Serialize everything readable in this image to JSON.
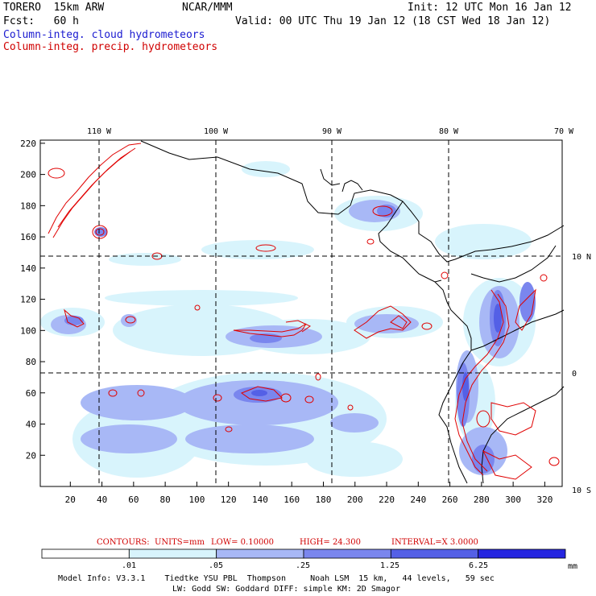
{
  "header": {
    "model": "TORERO  15km ARW",
    "org": "NCAR/MMM",
    "init": "Init: 12 UTC Mon 16 Jan 12",
    "fcst": "Fcst:   60 h",
    "valid": "Valid: 00 UTC Thu 19 Jan 12 (18 CST Wed 18 Jan 12)",
    "field1": "Column-integ. cloud hydrometeors",
    "field2": "Column-integ. precip. hydrometeors"
  },
  "map": {
    "lon_labels": [
      "110 W",
      "100 W",
      "90 W",
      "80 W",
      "70 W"
    ],
    "lat_labels": [
      "10 N",
      "0",
      "10 S"
    ],
    "x_ticks": [
      "20",
      "40",
      "60",
      "80",
      "100",
      "120",
      "140",
      "160",
      "180",
      "200",
      "220",
      "240",
      "260",
      "280",
      "300",
      "320"
    ],
    "y_ticks": [
      "20",
      "40",
      "60",
      "80",
      "100",
      "120",
      "140",
      "160",
      "180",
      "200",
      "220"
    ]
  },
  "contour_info": {
    "label": "CONTOURS:",
    "units": "UNITS=mm",
    "low": "LOW= 0.10000",
    "high": "HIGH=  24.300",
    "interval": "INTERVAL=X  3.0000"
  },
  "colorbar": {
    "labels": [
      ".01",
      ".05",
      ".25",
      "1.25",
      "6.25"
    ],
    "unit": "mm",
    "colors": [
      "#ffffff",
      "#d8f4fc",
      "#a8b8f6",
      "#7a86ee",
      "#5460e6",
      "#2626e0"
    ]
  },
  "footer": {
    "line1": "Model Info: V3.3.1    Tiedtke YSU PBL  Thompson     Noah LSM  15 km,   44 levels,   59 sec",
    "line2": "LW: Godd SW: Goddard DIFF: simple KM: 2D Smagor"
  },
  "colors": {
    "coast": "#000000",
    "contour": "#e00000"
  }
}
